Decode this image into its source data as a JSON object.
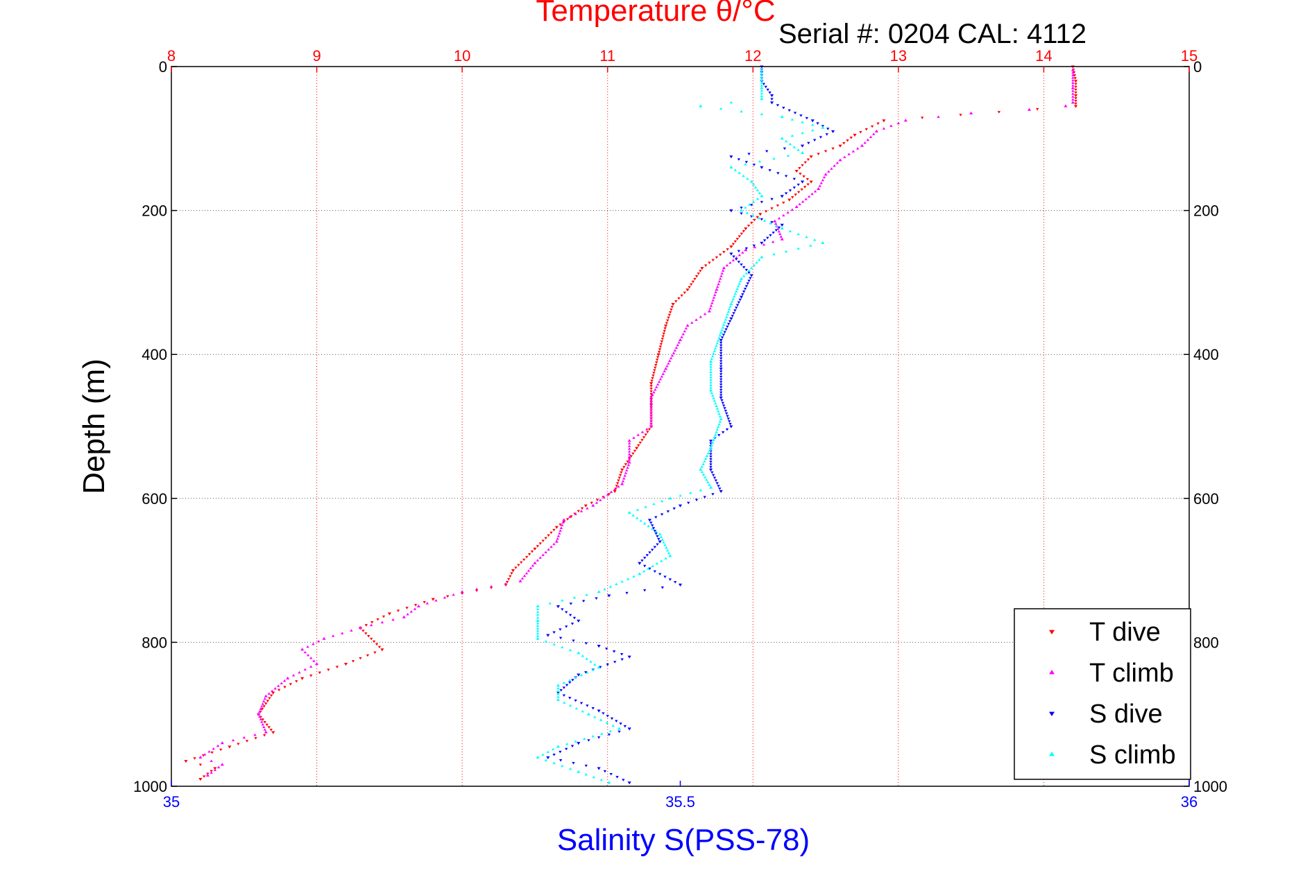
{
  "chart_data": {
    "type": "scatter",
    "title": "Temperature θ/°C",
    "annotation": "Serial #: 0204  CAL: 4112",
    "xlabel_top": "Temperature θ/°C",
    "xlabel_bottom": "Salinity S(PSS-78)",
    "ylabel": "Depth (m)",
    "temperature_axis": {
      "range": [
        8,
        15
      ],
      "ticks": [
        "8",
        "9",
        "10",
        "11",
        "12",
        "13",
        "14",
        "15"
      ],
      "color": "#ff0000"
    },
    "salinity_axis": {
      "range": [
        35,
        36
      ],
      "ticks": [
        "35",
        "35.5",
        "36"
      ],
      "color": "#0000ff"
    },
    "depth_axis": {
      "range": [
        0,
        1000
      ],
      "reversed": true,
      "ticks": [
        "0",
        "200",
        "400",
        "600",
        "800",
        "1000"
      ]
    },
    "grid": true,
    "legend_position": "bottom-right",
    "series": [
      {
        "name": "T dive",
        "marker": "triangle-down",
        "color": "#ff0000",
        "axis": "temperature",
        "points": [
          [
            14.2,
            0
          ],
          [
            14.22,
            20
          ],
          [
            14.22,
            40
          ],
          [
            14.22,
            55
          ],
          [
            12.9,
            75
          ],
          [
            12.7,
            95
          ],
          [
            12.6,
            110
          ],
          [
            12.4,
            125
          ],
          [
            12.3,
            145
          ],
          [
            12.4,
            160
          ],
          [
            12.25,
            185
          ],
          [
            12.05,
            205
          ],
          [
            11.95,
            225
          ],
          [
            11.85,
            250
          ],
          [
            11.65,
            280
          ],
          [
            11.55,
            310
          ],
          [
            11.45,
            330
          ],
          [
            11.4,
            360
          ],
          [
            11.35,
            400
          ],
          [
            11.3,
            440
          ],
          [
            11.3,
            470
          ],
          [
            11.3,
            500
          ],
          [
            11.2,
            530
          ],
          [
            11.1,
            560
          ],
          [
            11.05,
            590
          ],
          [
            10.85,
            610
          ],
          [
            10.65,
            640
          ],
          [
            10.5,
            670
          ],
          [
            10.35,
            700
          ],
          [
            10.3,
            720
          ],
          [
            9.8,
            740
          ],
          [
            9.5,
            760
          ],
          [
            9.3,
            780
          ],
          [
            9.45,
            810
          ],
          [
            9.2,
            830
          ],
          [
            8.9,
            850
          ],
          [
            8.7,
            870
          ],
          [
            8.6,
            900
          ],
          [
            8.7,
            925
          ],
          [
            8.4,
            945
          ],
          [
            8.1,
            965
          ],
          [
            8.3,
            975
          ],
          [
            8.2,
            990
          ]
        ]
      },
      {
        "name": "T climb",
        "marker": "triangle-up",
        "color": "#ff00ff",
        "axis": "temperature",
        "points": [
          [
            14.2,
            5
          ],
          [
            14.2,
            30
          ],
          [
            14.2,
            50
          ],
          [
            14.15,
            55
          ],
          [
            13.9,
            60
          ],
          [
            13.5,
            65
          ],
          [
            13.05,
            75
          ],
          [
            12.85,
            90
          ],
          [
            12.75,
            110
          ],
          [
            12.6,
            130
          ],
          [
            12.5,
            150
          ],
          [
            12.45,
            170
          ],
          [
            12.3,
            195
          ],
          [
            12.15,
            215
          ],
          [
            12.2,
            240
          ],
          [
            11.95,
            255
          ],
          [
            11.8,
            280
          ],
          [
            11.75,
            310
          ],
          [
            11.7,
            340
          ],
          [
            11.55,
            360
          ],
          [
            11.5,
            380
          ],
          [
            11.4,
            420
          ],
          [
            11.3,
            460
          ],
          [
            11.3,
            500
          ],
          [
            11.15,
            520
          ],
          [
            11.15,
            550
          ],
          [
            11.1,
            580
          ],
          [
            10.9,
            610
          ],
          [
            10.7,
            630
          ],
          [
            10.65,
            660
          ],
          [
            10.5,
            690
          ],
          [
            10.4,
            715
          ],
          [
            10.0,
            730
          ],
          [
            9.7,
            750
          ],
          [
            9.6,
            765
          ],
          [
            9.3,
            780
          ],
          [
            9.05,
            795
          ],
          [
            8.9,
            810
          ],
          [
            9.0,
            830
          ],
          [
            8.8,
            850
          ],
          [
            8.65,
            875
          ],
          [
            8.6,
            900
          ],
          [
            8.65,
            925
          ],
          [
            8.35,
            940
          ],
          [
            8.2,
            960
          ],
          [
            8.35,
            970
          ],
          [
            8.25,
            985
          ]
        ]
      },
      {
        "name": "S dive",
        "marker": "triangle-down",
        "color": "#0000ff",
        "axis": "salinity",
        "points": [
          [
            35.58,
            0
          ],
          [
            35.58,
            20
          ],
          [
            35.59,
            40
          ],
          [
            35.59,
            50
          ],
          [
            35.63,
            75
          ],
          [
            35.65,
            90
          ],
          [
            35.62,
            110
          ],
          [
            35.55,
            125
          ],
          [
            35.58,
            140
          ],
          [
            35.62,
            160
          ],
          [
            35.6,
            180
          ],
          [
            35.55,
            200
          ],
          [
            35.6,
            220
          ],
          [
            35.58,
            245
          ],
          [
            35.55,
            260
          ],
          [
            35.57,
            290
          ],
          [
            35.56,
            320
          ],
          [
            35.55,
            350
          ],
          [
            35.54,
            380
          ],
          [
            35.54,
            420
          ],
          [
            35.54,
            460
          ],
          [
            35.55,
            500
          ],
          [
            35.53,
            520
          ],
          [
            35.53,
            560
          ],
          [
            35.54,
            590
          ],
          [
            35.5,
            610
          ],
          [
            35.47,
            630
          ],
          [
            35.48,
            660
          ],
          [
            35.46,
            690
          ],
          [
            35.5,
            720
          ],
          [
            35.43,
            735
          ],
          [
            35.38,
            750
          ],
          [
            35.4,
            770
          ],
          [
            35.37,
            790
          ],
          [
            35.42,
            805
          ],
          [
            35.45,
            820
          ],
          [
            35.4,
            845
          ],
          [
            35.38,
            870
          ],
          [
            35.42,
            895
          ],
          [
            35.45,
            920
          ],
          [
            35.4,
            940
          ],
          [
            35.37,
            960
          ],
          [
            35.42,
            975
          ],
          [
            35.45,
            995
          ]
        ]
      },
      {
        "name": "S climb",
        "marker": "triangle-up",
        "color": "#00ffff",
        "axis": "salinity",
        "points": [
          [
            35.58,
            5
          ],
          [
            35.58,
            30
          ],
          [
            35.58,
            45
          ],
          [
            35.52,
            55
          ],
          [
            35.6,
            70
          ],
          [
            35.64,
            85
          ],
          [
            35.6,
            100
          ],
          [
            35.62,
            120
          ],
          [
            35.55,
            140
          ],
          [
            35.57,
            160
          ],
          [
            35.58,
            180
          ],
          [
            35.56,
            200
          ],
          [
            35.6,
            225
          ],
          [
            35.64,
            245
          ],
          [
            35.58,
            265
          ],
          [
            35.56,
            295
          ],
          [
            35.55,
            330
          ],
          [
            35.54,
            370
          ],
          [
            35.53,
            410
          ],
          [
            35.53,
            450
          ],
          [
            35.54,
            490
          ],
          [
            35.53,
            530
          ],
          [
            35.52,
            560
          ],
          [
            35.53,
            585
          ],
          [
            35.49,
            600
          ],
          [
            35.45,
            620
          ],
          [
            35.48,
            650
          ],
          [
            35.49,
            680
          ],
          [
            35.46,
            705
          ],
          [
            35.42,
            730
          ],
          [
            35.36,
            750
          ],
          [
            35.36,
            770
          ],
          [
            35.36,
            795
          ],
          [
            35.4,
            815
          ],
          [
            35.42,
            835
          ],
          [
            35.38,
            860
          ],
          [
            35.38,
            880
          ],
          [
            35.41,
            900
          ],
          [
            35.44,
            920
          ],
          [
            35.38,
            945
          ],
          [
            35.36,
            960
          ],
          [
            35.4,
            980
          ],
          [
            35.43,
            995
          ]
        ]
      }
    ]
  }
}
